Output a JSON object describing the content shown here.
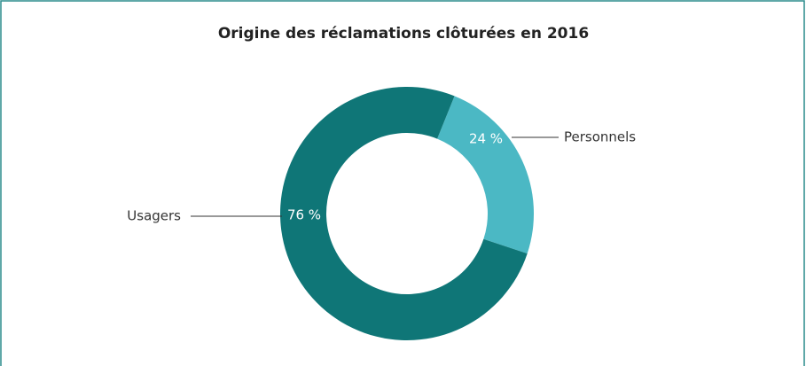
{
  "chart_data": {
    "type": "donut",
    "title": "Origine des réclamations clôturées en 2016",
    "categories": [
      "Personnels",
      "Usagers"
    ],
    "values": [
      24,
      76
    ],
    "value_labels": [
      "24 %",
      "76 %"
    ],
    "colors": [
      "#4bb8c4",
      "#0f7677"
    ]
  }
}
